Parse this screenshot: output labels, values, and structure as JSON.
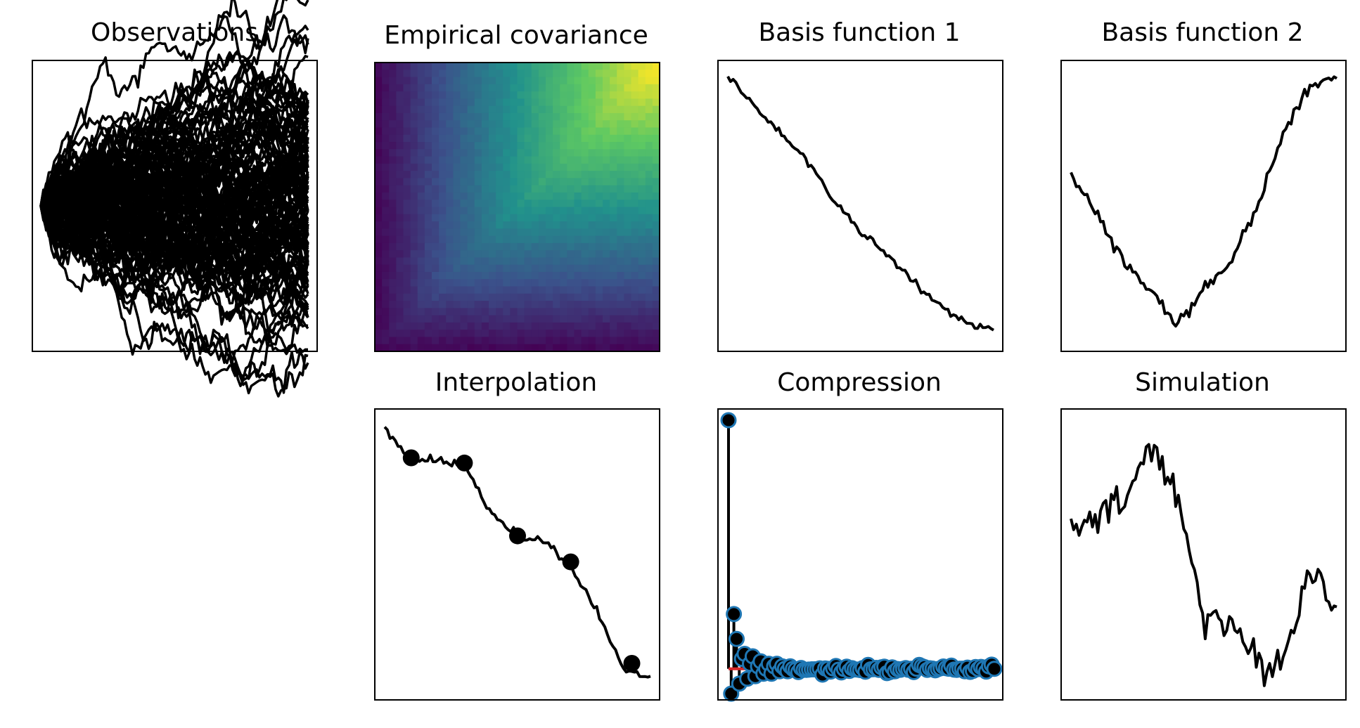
{
  "figure": {
    "panels": [
      {
        "id": "observations",
        "title": "Observations"
      },
      {
        "id": "covariance",
        "title": "Empirical covariance"
      },
      {
        "id": "basis1",
        "title": "Basis function 1"
      },
      {
        "id": "basis2",
        "title": "Basis function 2"
      },
      {
        "id": "interpolation",
        "title": "Interpolation"
      },
      {
        "id": "compression",
        "title": "Compression"
      },
      {
        "id": "simulation",
        "title": "Simulation"
      }
    ]
  },
  "colors": {
    "line": "#000000",
    "marker_edge": "#1f77b4",
    "baseline": "#d62728",
    "colormap": [
      "#440154",
      "#3b528b",
      "#21918c",
      "#5ec962",
      "#fde725"
    ]
  },
  "chart_data": [
    {
      "type": "line",
      "title": "Observations",
      "n_series": 120,
      "x": [
        0,
        100
      ],
      "y_range": [
        -3.6,
        3.6
      ],
      "description_of_values": "random walk paths starting near 0, spreading out over x",
      "grid": false,
      "ticks": false
    },
    {
      "type": "heatmap",
      "title": "Empirical covariance",
      "size": [
        100,
        100
      ],
      "colormap": "viridis",
      "value_range": [
        0.0,
        1.0
      ],
      "grid": false,
      "ticks": false
    },
    {
      "type": "line",
      "title": "Basis function 1",
      "x": [
        0,
        10,
        20,
        30,
        40,
        50,
        60,
        70,
        80,
        90,
        100
      ],
      "y": [
        1.0,
        0.88,
        0.78,
        0.67,
        0.52,
        0.4,
        0.31,
        0.21,
        0.11,
        0.04,
        0.03
      ],
      "grid": false,
      "ticks": false
    },
    {
      "type": "line",
      "title": "Basis function 2",
      "x": [
        0,
        10,
        20,
        30,
        40,
        50,
        60,
        70,
        80,
        90,
        100
      ],
      "y": [
        0.63,
        0.46,
        0.28,
        0.18,
        0.04,
        0.18,
        0.28,
        0.5,
        0.78,
        0.96,
        1.0
      ],
      "grid": false,
      "ticks": false
    },
    {
      "type": "line",
      "title": "Interpolation",
      "x": [
        0,
        10,
        20,
        30,
        40,
        50,
        60,
        70,
        80,
        90,
        100
      ],
      "y": [
        0.98,
        0.87,
        0.86,
        0.84,
        0.66,
        0.57,
        0.55,
        0.45,
        0.28,
        0.05,
        0.03
      ],
      "points": {
        "x": [
          10,
          30,
          50,
          70,
          93
        ],
        "y": [
          0.87,
          0.85,
          0.57,
          0.47,
          0.08
        ]
      },
      "grid": false,
      "ticks": false
    },
    {
      "type": "scatter",
      "title": "Compression",
      "stem_first": true,
      "baseline": 0,
      "y_range": [
        -0.08,
        1.0
      ],
      "values": [
        1.0,
        -0.1,
        0.22,
        0.12,
        -0.06,
        0.04,
        0.06,
        -0.04,
        0.02,
        0.05,
        -0.03,
        0.01,
        0.03,
        -0.02,
        0.0,
        0.02,
        -0.02,
        0.01,
        0.02,
        -0.01,
        0.01,
        0.0,
        -0.01,
        0.01,
        0.0
      ],
      "grid": false,
      "ticks": false
    },
    {
      "type": "line",
      "title": "Simulation",
      "x": [
        0,
        10,
        20,
        30,
        40,
        50,
        60,
        70,
        80,
        90,
        100
      ],
      "y": [
        0.6,
        0.62,
        0.72,
        0.9,
        0.74,
        0.26,
        0.24,
        0.07,
        0.09,
        0.45,
        0.32
      ],
      "grid": false,
      "ticks": false
    }
  ]
}
